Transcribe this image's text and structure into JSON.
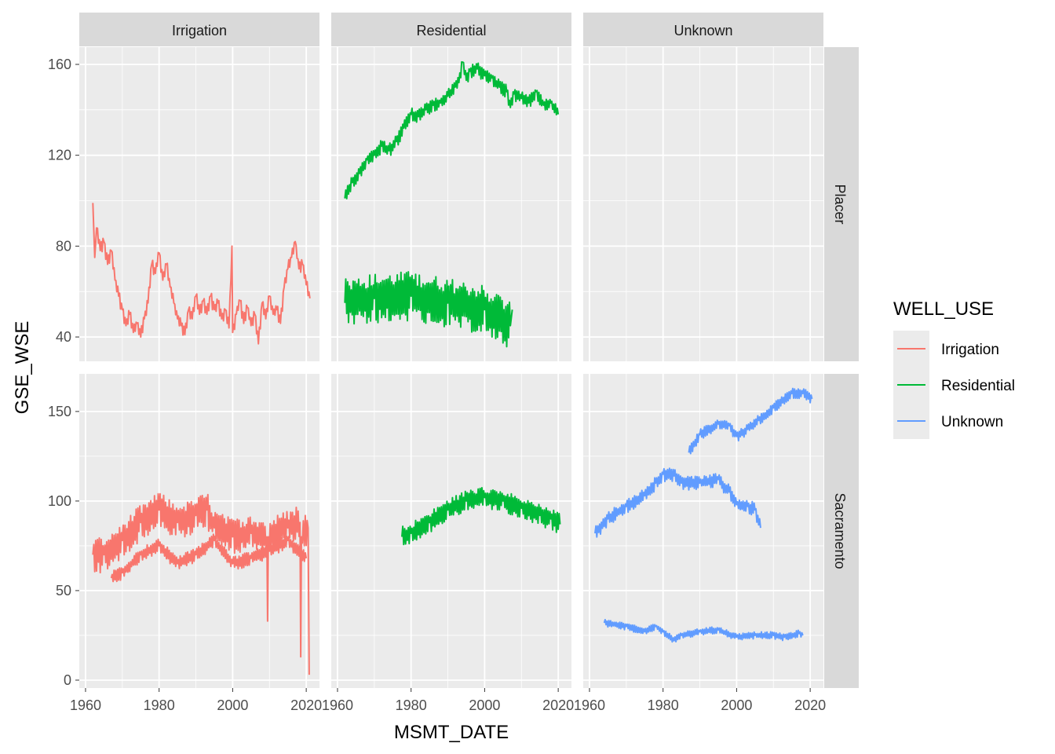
{
  "chart_data": {
    "type": "line",
    "xlabel": "MSMT_DATE",
    "ylabel": "GSE_WSE",
    "facet_cols": [
      "Irrigation",
      "Residential",
      "Unknown"
    ],
    "facet_rows": [
      "Placer",
      "Sacramento"
    ],
    "x_ticks": [
      1960,
      1980,
      2000,
      2020
    ],
    "xlim": [
      1958.3,
      2023.6
    ],
    "row_axes": [
      {
        "row": "Placer",
        "ylim": [
          29.3,
          167.6
        ],
        "y_ticks": [
          40,
          80,
          120,
          160
        ],
        "minor": [
          60,
          100,
          140
        ]
      },
      {
        "row": "Sacramento",
        "ylim": [
          -4.4,
          171
        ],
        "y_ticks": [
          0,
          50,
          100,
          150
        ],
        "minor": [
          25,
          75,
          125
        ]
      }
    ],
    "legend": {
      "title": "WELL_USE",
      "position": "right",
      "entries": [
        {
          "label": "Irrigation",
          "color": "#F8766D"
        },
        {
          "label": "Residential",
          "color": "#00BA38"
        },
        {
          "label": "Unknown",
          "color": "#619CFF"
        }
      ]
    },
    "grid": true,
    "series": [
      {
        "name": "Irrigation",
        "row": 0,
        "col": 0,
        "color": "#F8766D",
        "seasonal_amp": 3,
        "points": [
          [
            1962,
            99
          ],
          [
            1962.5,
            75
          ],
          [
            1963,
            88
          ],
          [
            1964,
            78
          ],
          [
            1965,
            82
          ],
          [
            1966,
            72
          ],
          [
            1967,
            78
          ],
          [
            1968,
            65
          ],
          [
            1969,
            58
          ],
          [
            1970,
            52
          ],
          [
            1971,
            45
          ],
          [
            1972,
            50
          ],
          [
            1973,
            42
          ],
          [
            1974,
            46
          ],
          [
            1975,
            40
          ],
          [
            1976,
            48
          ],
          [
            1977,
            55
          ],
          [
            1978,
            72
          ],
          [
            1979,
            68
          ],
          [
            1980,
            77
          ],
          [
            1981,
            65
          ],
          [
            1982,
            72
          ],
          [
            1983,
            62
          ],
          [
            1984,
            55
          ],
          [
            1985,
            48
          ],
          [
            1986,
            45
          ],
          [
            1987,
            41
          ],
          [
            1988,
            52
          ],
          [
            1989,
            48
          ],
          [
            1990,
            58
          ],
          [
            1991,
            50
          ],
          [
            1992,
            56
          ],
          [
            1993,
            50
          ],
          [
            1994,
            58
          ],
          [
            1995,
            52
          ],
          [
            1996,
            55
          ],
          [
            1997,
            48
          ],
          [
            1998,
            52
          ],
          [
            1999,
            44
          ],
          [
            1999.8,
            80
          ],
          [
            2000,
            42
          ],
          [
            2001,
            50
          ],
          [
            2002,
            56
          ],
          [
            2003,
            46
          ],
          [
            2004,
            53
          ],
          [
            2005,
            45
          ],
          [
            2006,
            50
          ],
          [
            2007,
            37
          ],
          [
            2008,
            55
          ],
          [
            2009,
            48
          ],
          [
            2010,
            58
          ],
          [
            2011,
            50
          ],
          [
            2012,
            52
          ],
          [
            2013,
            46
          ],
          [
            2014,
            62
          ],
          [
            2015,
            70
          ],
          [
            2016,
            75
          ],
          [
            2017,
            82
          ],
          [
            2018,
            70
          ],
          [
            2019,
            72
          ],
          [
            2020,
            63
          ],
          [
            2021,
            57
          ]
        ]
      },
      {
        "name": "Residential",
        "row": 0,
        "col": 1,
        "color": "#00BA38",
        "seasonal_amp": 3,
        "points": [
          [
            1962,
            101
          ],
          [
            1964,
            108
          ],
          [
            1966,
            112
          ],
          [
            1968,
            118
          ],
          [
            1970,
            120
          ],
          [
            1972,
            124
          ],
          [
            1974,
            122
          ],
          [
            1976,
            126
          ],
          [
            1978,
            132
          ],
          [
            1980,
            138
          ],
          [
            1982,
            137
          ],
          [
            1984,
            140
          ],
          [
            1986,
            142
          ],
          [
            1988,
            143
          ],
          [
            1990,
            146
          ],
          [
            1992,
            150
          ],
          [
            1993,
            152
          ],
          [
            1994,
            161
          ],
          [
            1995,
            153
          ],
          [
            1996,
            157
          ],
          [
            1998,
            158
          ],
          [
            2000,
            155
          ],
          [
            2002,
            154
          ],
          [
            2004,
            150
          ],
          [
            2006,
            148
          ],
          [
            2007,
            141
          ],
          [
            2008,
            147
          ],
          [
            2010,
            145
          ],
          [
            2012,
            143
          ],
          [
            2014,
            148
          ],
          [
            2016,
            142
          ],
          [
            2018,
            143
          ],
          [
            2020,
            138
          ]
        ]
      },
      {
        "name": "Residential",
        "row": 0,
        "col": 1,
        "color": "#00BA38",
        "seasonal_amp": 11,
        "points": [
          [
            1962,
            55
          ],
          [
            1970,
            57
          ],
          [
            1980,
            58
          ],
          [
            1990,
            55
          ],
          [
            2000,
            52
          ],
          [
            2007,
            45
          ],
          [
            2007.5,
            52
          ]
        ]
      },
      {
        "name": "Irrigation",
        "row": 1,
        "col": 0,
        "color": "#F8766D",
        "seasonal_amp": 10,
        "points": [
          [
            1962,
            70
          ],
          [
            1965,
            70
          ],
          [
            1970,
            78
          ],
          [
            1975,
            88
          ],
          [
            1980,
            95
          ],
          [
            1985,
            88
          ],
          [
            1990,
            92
          ],
          [
            1993,
            95
          ],
          [
            1995,
            85
          ],
          [
            2000,
            80
          ],
          [
            2005,
            82
          ],
          [
            2009.3,
            80
          ],
          [
            2009.5,
            33
          ],
          [
            2009.7,
            80
          ],
          [
            2015,
            85
          ],
          [
            2018.3,
            88
          ],
          [
            2018.5,
            13
          ],
          [
            2018.7,
            80
          ],
          [
            2020.5,
            85
          ],
          [
            2020.8,
            3
          ]
        ]
      },
      {
        "name": "Irrigation",
        "row": 1,
        "col": 0,
        "color": "#F8766D",
        "seasonal_amp": 4,
        "points": [
          [
            1967,
            57
          ],
          [
            1970,
            60
          ],
          [
            1975,
            70
          ],
          [
            1980,
            75
          ],
          [
            1985,
            65
          ],
          [
            1990,
            70
          ],
          [
            1995,
            78
          ],
          [
            2000,
            65
          ],
          [
            2005,
            68
          ],
          [
            2010,
            72
          ],
          [
            2015,
            78
          ],
          [
            2020,
            68
          ]
        ]
      },
      {
        "name": "Residential",
        "row": 1,
        "col": 1,
        "color": "#00BA38",
        "seasonal_amp": 6,
        "points": [
          [
            1977.5,
            80
          ],
          [
            1980,
            82
          ],
          [
            1985,
            88
          ],
          [
            1990,
            95
          ],
          [
            1995,
            100
          ],
          [
            2000,
            102
          ],
          [
            2005,
            100
          ],
          [
            2010,
            96
          ],
          [
            2015,
            92
          ],
          [
            2018,
            90
          ],
          [
            2020.5,
            87
          ]
        ]
      },
      {
        "name": "Unknown",
        "row": 1,
        "col": 2,
        "color": "#619CFF",
        "seasonal_amp": 4,
        "points": [
          [
            1961.5,
            82
          ],
          [
            1965,
            90
          ],
          [
            1970,
            97
          ],
          [
            1975,
            103
          ],
          [
            1978,
            110
          ],
          [
            1980,
            115
          ],
          [
            1983,
            114
          ],
          [
            1985,
            110
          ],
          [
            1990,
            110
          ],
          [
            1995,
            112
          ],
          [
            1998,
            105
          ],
          [
            2000,
            98
          ],
          [
            2003,
            97
          ],
          [
            2005,
            95
          ],
          [
            2006.5,
            85
          ]
        ]
      },
      {
        "name": "Unknown",
        "row": 1,
        "col": 2,
        "color": "#619CFF",
        "seasonal_amp": 3,
        "points": [
          [
            1987,
            127
          ],
          [
            1990,
            137
          ],
          [
            1995,
            143
          ],
          [
            1998,
            142
          ],
          [
            2000,
            136
          ],
          [
            2003,
            140
          ],
          [
            2006,
            145
          ],
          [
            2010,
            152
          ],
          [
            2015,
            160
          ],
          [
            2018,
            160
          ],
          [
            2020.5,
            157
          ]
        ]
      },
      {
        "name": "Unknown",
        "row": 1,
        "col": 2,
        "color": "#619CFF",
        "seasonal_amp": 2,
        "points": [
          [
            1964,
            32
          ],
          [
            1970,
            30
          ],
          [
            1975,
            27
          ],
          [
            1978,
            30
          ],
          [
            1980,
            27
          ],
          [
            1983,
            22
          ],
          [
            1985,
            25
          ],
          [
            1990,
            27
          ],
          [
            1995,
            28
          ],
          [
            2000,
            24
          ],
          [
            2005,
            25
          ],
          [
            2010,
            25
          ],
          [
            2013,
            24
          ],
          [
            2017,
            26
          ],
          [
            2018,
            25
          ]
        ]
      }
    ]
  }
}
